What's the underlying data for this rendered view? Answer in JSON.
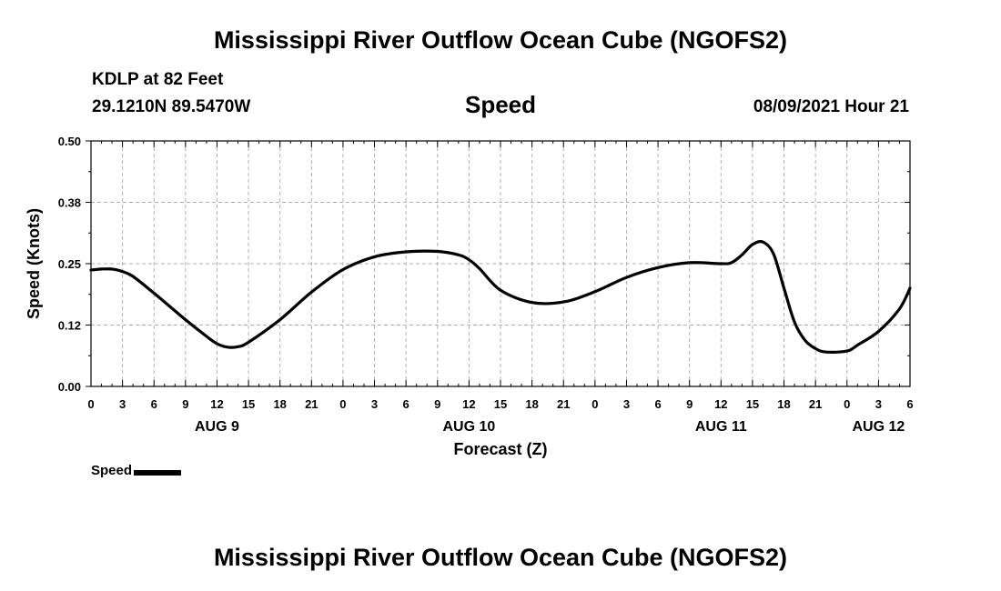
{
  "header": {
    "title": "Mississippi River Outflow Ocean Cube (NGOFS2)",
    "station": "KDLP at 82 Feet",
    "coords": "29.1210N  89.5470W",
    "variable": "Speed",
    "datetime": "08/09/2021 Hour 21"
  },
  "footer": {
    "title": "Mississippi River Outflow Ocean Cube (NGOFS2)"
  },
  "legend": {
    "label": "Speed"
  },
  "chart_data": {
    "type": "line",
    "title": "Speed",
    "xlabel": "Forecast (Z)",
    "ylabel": "Speed (Knots)",
    "xlim": [
      0,
      78
    ],
    "ylim": [
      0,
      0.5
    ],
    "yticks": [
      "0.00",
      "0.12",
      "0.25",
      "0.38",
      "0.50"
    ],
    "ytick_values": [
      0,
      0.125,
      0.25,
      0.375,
      0.5
    ],
    "xtick_hours": [
      0,
      3,
      6,
      9,
      12,
      15,
      18,
      21,
      24,
      27,
      30,
      33,
      36,
      39,
      42,
      45,
      48,
      51,
      54,
      57,
      60,
      63,
      66,
      69,
      72,
      75,
      78
    ],
    "xtick_labels": [
      "0",
      "3",
      "6",
      "9",
      "12",
      "15",
      "18",
      "21",
      "0",
      "3",
      "6",
      "9",
      "12",
      "15",
      "18",
      "21",
      "0",
      "3",
      "6",
      "9",
      "12",
      "15",
      "18",
      "21",
      "0",
      "3",
      "6"
    ],
    "day_labels": [
      {
        "hour": 12,
        "label": "AUG 9"
      },
      {
        "hour": 36,
        "label": "AUG 10"
      },
      {
        "hour": 60,
        "label": "AUG 11"
      },
      {
        "hour": 75,
        "label": "AUG 12"
      }
    ],
    "grid": true,
    "series": [
      {
        "name": "Speed",
        "color": "#000000",
        "x": [
          0,
          1,
          2,
          3,
          4,
          6,
          9,
          11,
          12,
          13,
          14,
          15,
          18,
          21,
          24,
          27,
          30,
          33,
          35,
          36,
          37,
          39,
          42,
          45,
          48,
          51,
          54,
          57,
          60,
          61,
          62,
          63,
          64,
          65,
          66,
          67,
          68,
          69,
          70,
          72,
          73,
          75,
          77,
          78
        ],
        "values": [
          0.237,
          0.239,
          0.239,
          0.234,
          0.224,
          0.19,
          0.136,
          0.102,
          0.087,
          0.08,
          0.081,
          0.09,
          0.136,
          0.192,
          0.238,
          0.264,
          0.274,
          0.275,
          0.268,
          0.258,
          0.24,
          0.196,
          0.171,
          0.172,
          0.193,
          0.222,
          0.242,
          0.252,
          0.25,
          0.252,
          0.268,
          0.289,
          0.294,
          0.27,
          0.2,
          0.131,
          0.094,
          0.077,
          0.07,
          0.072,
          0.084,
          0.112,
          0.158,
          0.2
        ]
      }
    ]
  }
}
